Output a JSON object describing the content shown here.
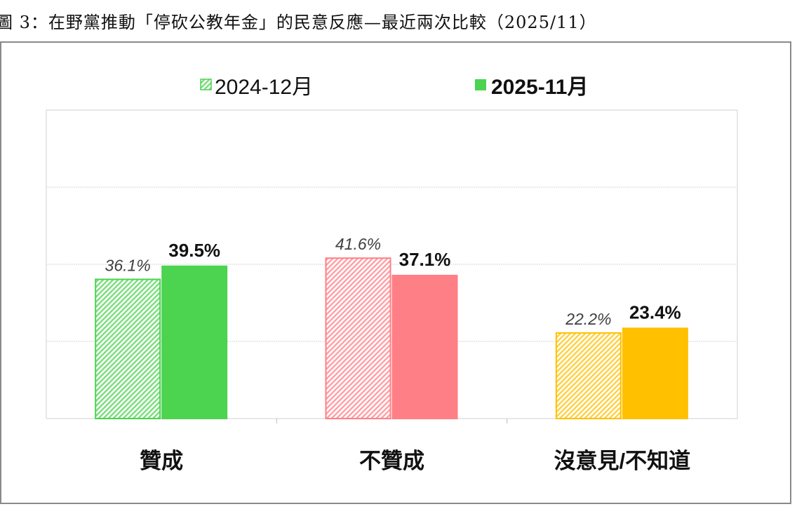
{
  "chart_data": {
    "type": "bar",
    "title": "圖 3：在野黨推動「停砍公教年金」的民意反應—最近兩次比較（2025/11）",
    "categories": [
      "贊成",
      "不贊成",
      "沒意見/不知道"
    ],
    "series": [
      {
        "name": "2024-12月",
        "values": [
          36.1,
          41.6,
          22.2
        ],
        "labels": [
          "36.1%",
          "41.6%",
          "22.2%"
        ],
        "style": "hatched"
      },
      {
        "name": "2025-11月",
        "values": [
          39.5,
          37.1,
          23.4
        ],
        "labels": [
          "39.5%",
          "37.1%",
          "23.4%"
        ],
        "style": "solid"
      }
    ],
    "category_colors": [
      "#4CD34F",
      "#FF7F86",
      "#FFC000"
    ],
    "legend_color": "#4CD34F",
    "ylim": [
      0,
      80
    ],
    "ygrid": [
      20,
      40,
      60
    ],
    "grid": true,
    "legend_position": "top-center",
    "xlabel": "",
    "ylabel": ""
  }
}
